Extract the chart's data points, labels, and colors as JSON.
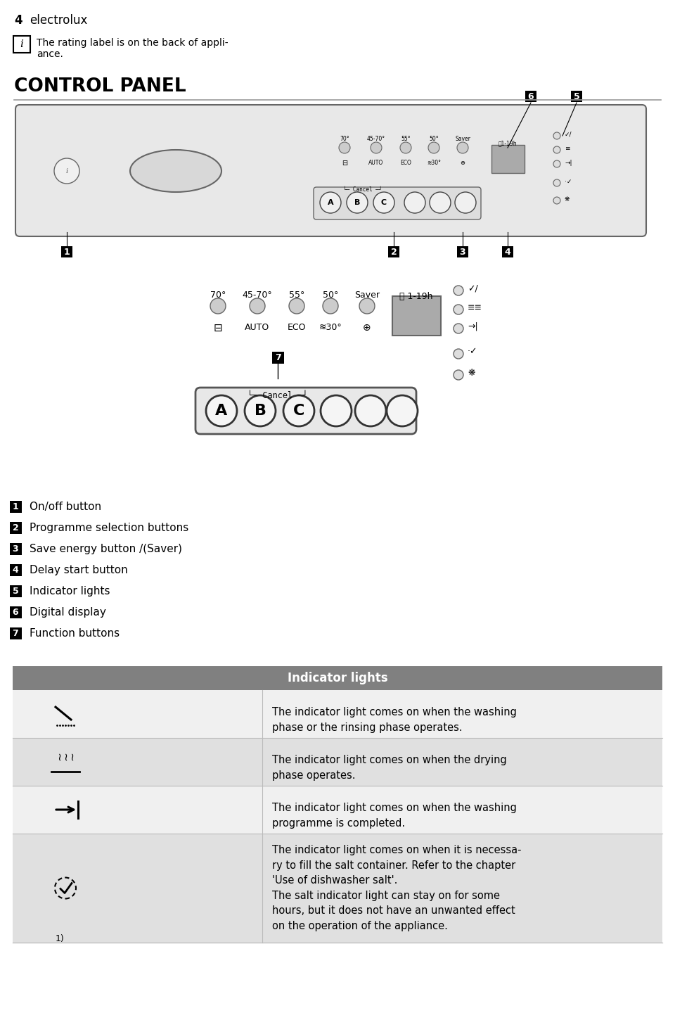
{
  "page_number": "4",
  "brand": "electrolux",
  "info_text": "The rating label is on the back of appli-\nance.",
  "section_title": "CONTROL PANEL",
  "numbered_items": [
    {
      "num": "1",
      "text": "On/off button"
    },
    {
      "num": "2",
      "text": "Programme selection buttons"
    },
    {
      "num": "3",
      "text": "Save energy button /(Saver)"
    },
    {
      "num": "4",
      "text": "Delay start button"
    },
    {
      "num": "5",
      "text": "Indicator lights"
    },
    {
      "num": "6",
      "text": "Digital display"
    },
    {
      "num": "7",
      "text": "Function buttons"
    }
  ],
  "table_header": "Indicator lights",
  "table_header_bg": "#808080",
  "table_header_fg": "#ffffff",
  "table_rows": [
    {
      "icon_type": "wash",
      "description": "The indicator light comes on when the washing\nphase or the rinsing phase operates.",
      "bg": "#f0f0f0"
    },
    {
      "icon_type": "dry",
      "description": "The indicator light comes on when the drying\nphase operates.",
      "bg": "#e0e0e0"
    },
    {
      "icon_type": "complete",
      "description": "The indicator light comes on when the washing\nprogramme is completed.",
      "bg": "#f0f0f0"
    },
    {
      "icon_type": "salt",
      "footnote": "1)",
      "description": "The indicator light comes on when it is necessa-\nry to fill the salt container. Refer to the chapter\n'Use of dishwasher salt'.\nThe salt indicator light can stay on for some\nhours, but it does not have an unwanted effect\non the operation of the appliance.",
      "bg": "#e0e0e0"
    }
  ],
  "bg_color": "#ffffff",
  "text_color": "#000000"
}
